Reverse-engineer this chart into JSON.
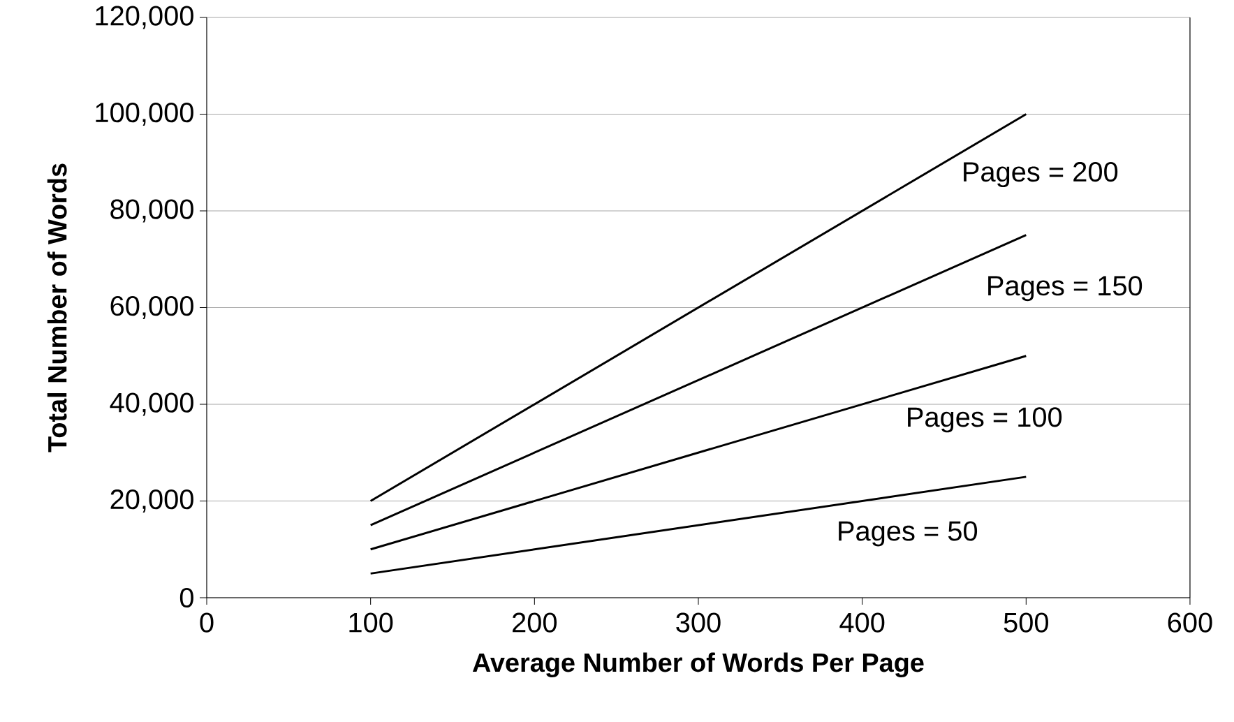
{
  "chart_data": {
    "type": "line",
    "xlabel": "Average Number of Words Per Page",
    "ylabel": "Total Number of Words",
    "x": [
      100,
      500
    ],
    "series": [
      {
        "name": "Pages = 50",
        "color": "#000000",
        "values": [
          5000,
          25000
        ]
      },
      {
        "name": "Pages = 100",
        "color": "#000000",
        "values": [
          10000,
          50000
        ]
      },
      {
        "name": "Pages = 150",
        "color": "#000000",
        "values": [
          15000,
          75000
        ]
      },
      {
        "name": "Pages = 200",
        "color": "#000000",
        "values": [
          20000,
          100000
        ]
      }
    ],
    "xlim": [
      0,
      600
    ],
    "xticks": [
      0,
      100,
      200,
      300,
      400,
      500,
      600
    ],
    "ylim": [
      0,
      120000
    ],
    "yticks": [
      {
        "value": 0,
        "label": "0"
      },
      {
        "value": 20000,
        "label": "20,000"
      },
      {
        "value": 40000,
        "label": "40,000"
      },
      {
        "value": 60000,
        "label": "60,000"
      },
      {
        "value": 80000,
        "label": "80,000"
      },
      {
        "value": 100000,
        "label": "100,000"
      },
      {
        "value": 120000,
        "label": "120,000"
      }
    ],
    "grid": "y",
    "legend": false,
    "marker": "none",
    "line_style": "solid"
  }
}
